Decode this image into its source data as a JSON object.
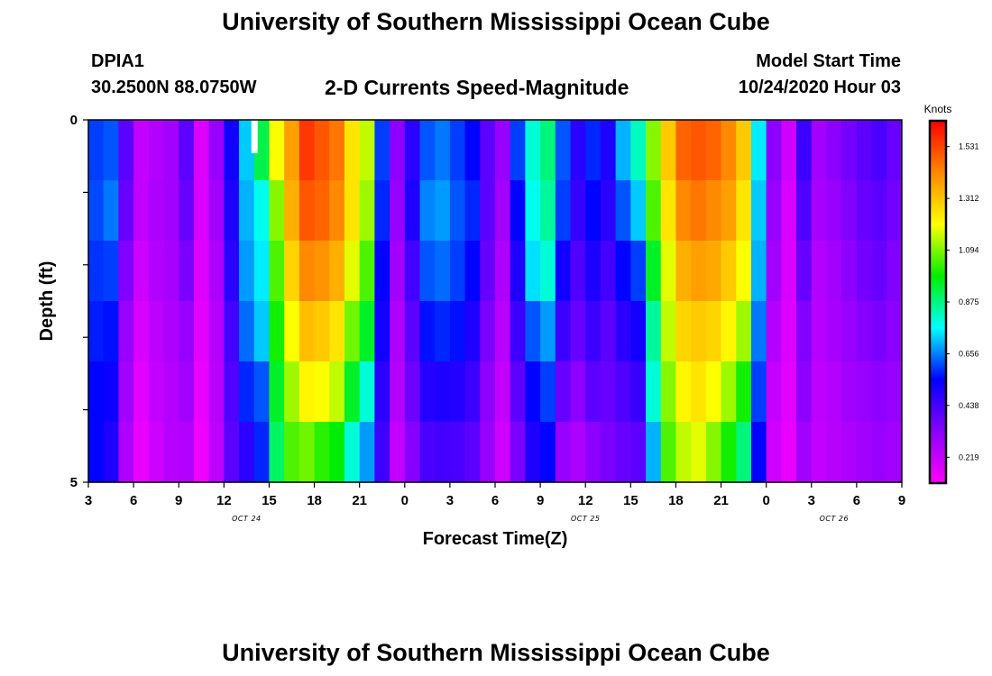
{
  "header": {
    "title": "University of Southern Mississippi Ocean Cube",
    "station_id": "DPIA1",
    "station_coords": "30.2500N 88.0750W",
    "plot_title": "2-D Currents Speed-Magnitude",
    "model_start_label": "Model Start Time",
    "model_start_value": "10/24/2020 Hour 03"
  },
  "footer": {
    "title": "University of Southern Mississippi Ocean Cube"
  },
  "chart_data": {
    "type": "heatmap",
    "xlabel": "Forecast Time(Z)",
    "ylabel": "Depth (ft)",
    "ylim": [
      0,
      5
    ],
    "y_ticks": [
      "0",
      "5"
    ],
    "x_tick_labels": [
      "3",
      "6",
      "9",
      "12",
      "15",
      "18",
      "21",
      "0",
      "3",
      "6",
      "9",
      "12",
      "15",
      "18",
      "21",
      "0",
      "3",
      "6",
      "9"
    ],
    "x_start_hour": 3,
    "x_step_hours": 3,
    "date_labels": [
      {
        "label": "OCT 24",
        "at_tick": 3.5
      },
      {
        "label": "OCT 25",
        "at_tick": 11
      },
      {
        "label": "OCT 26",
        "at_tick": 16.5
      }
    ],
    "colorbar": {
      "unit": "Knots",
      "ticks": [
        "1.531",
        "1.312",
        "1.094",
        "0.875",
        "0.656",
        "0.438",
        "0.219"
      ],
      "tick_values": [
        1.531,
        1.312,
        1.094,
        0.875,
        0.656,
        0.438,
        0.219
      ],
      "min": 0.11,
      "max": 1.64,
      "colors": [
        "#ff00ff",
        "#8800ff",
        "#0000ff",
        "#00ffff",
        "#00ee00",
        "#ffff00",
        "#ff8800",
        "#ff0000"
      ]
    },
    "hours_per_column": 1,
    "depth_layers": 5,
    "speed_knots": [
      [
        0.6,
        0.61,
        0.59,
        0.57,
        0.55,
        0.55
      ],
      [
        0.62,
        0.65,
        0.6,
        0.56,
        0.53,
        0.5
      ],
      [
        0.4,
        0.38,
        0.34,
        0.3,
        0.28,
        0.26
      ],
      [
        0.22,
        0.22,
        0.2,
        0.18,
        0.16,
        0.15
      ],
      [
        0.25,
        0.26,
        0.25,
        0.23,
        0.22,
        0.2
      ],
      [
        0.28,
        0.28,
        0.27,
        0.26,
        0.25,
        0.24
      ],
      [
        0.4,
        0.38,
        0.35,
        0.3,
        0.28,
        0.25
      ],
      [
        0.18,
        0.18,
        0.17,
        0.16,
        0.15,
        0.14
      ],
      [
        0.3,
        0.28,
        0.26,
        0.25,
        0.24,
        0.23
      ],
      [
        0.52,
        0.5,
        0.48,
        0.44,
        0.42,
        0.4
      ],
      [
        0.72,
        0.7,
        0.68,
        0.64,
        0.58,
        0.48
      ],
      [
        0.92,
        0.78,
        0.75,
        0.72,
        0.62,
        0.58
      ],
      [
        1.2,
        1.1,
        1.05,
        1.0,
        0.95,
        0.9
      ],
      [
        1.38,
        1.35,
        1.28,
        1.2,
        1.12,
        1.05
      ],
      [
        1.55,
        1.5,
        1.42,
        1.32,
        1.22,
        1.08
      ],
      [
        1.5,
        1.48,
        1.4,
        1.3,
        1.2,
        1.02
      ],
      [
        1.45,
        1.42,
        1.35,
        1.25,
        1.15,
        0.98
      ],
      [
        1.25,
        1.25,
        1.18,
        1.08,
        0.95,
        0.8
      ],
      [
        1.15,
        1.12,
        1.05,
        0.95,
        0.8,
        0.68
      ],
      [
        0.6,
        0.58,
        0.55,
        0.52,
        0.48,
        0.45
      ],
      [
        0.32,
        0.3,
        0.28,
        0.26,
        0.25,
        0.22
      ],
      [
        0.48,
        0.5,
        0.44,
        0.4,
        0.37,
        0.33
      ],
      [
        0.62,
        0.66,
        0.62,
        0.56,
        0.49,
        0.43
      ],
      [
        0.65,
        0.68,
        0.64,
        0.58,
        0.5,
        0.44
      ],
      [
        0.6,
        0.62,
        0.6,
        0.56,
        0.49,
        0.43
      ],
      [
        0.55,
        0.58,
        0.55,
        0.5,
        0.45,
        0.4
      ],
      [
        0.4,
        0.4,
        0.38,
        0.35,
        0.32,
        0.3
      ],
      [
        0.3,
        0.28,
        0.26,
        0.24,
        0.22,
        0.2
      ],
      [
        0.6,
        0.55,
        0.5,
        0.45,
        0.4,
        0.35
      ],
      [
        0.8,
        0.78,
        0.74,
        0.62,
        0.55,
        0.5
      ],
      [
        0.88,
        0.85,
        0.8,
        0.68,
        0.6,
        0.55
      ],
      [
        0.62,
        0.6,
        0.52,
        0.45,
        0.38,
        0.3
      ],
      [
        0.48,
        0.46,
        0.42,
        0.38,
        0.32,
        0.26
      ],
      [
        0.58,
        0.55,
        0.5,
        0.45,
        0.4,
        0.32
      ],
      [
        0.5,
        0.48,
        0.44,
        0.4,
        0.38,
        0.35
      ],
      [
        0.7,
        0.62,
        0.55,
        0.48,
        0.42,
        0.38
      ],
      [
        0.82,
        0.72,
        0.6,
        0.52,
        0.46,
        0.4
      ],
      [
        1.1,
        1.05,
        0.95,
        0.85,
        0.8,
        0.7
      ],
      [
        1.3,
        1.25,
        1.18,
        1.15,
        1.1,
        1.05
      ],
      [
        1.48,
        1.42,
        1.35,
        1.28,
        1.22,
        1.15
      ],
      [
        1.5,
        1.45,
        1.38,
        1.3,
        1.25,
        1.18
      ],
      [
        1.48,
        1.42,
        1.36,
        1.28,
        1.2,
        1.1
      ],
      [
        1.42,
        1.38,
        1.3,
        1.22,
        1.12,
        1.0
      ],
      [
        1.3,
        1.25,
        1.2,
        1.12,
        1.0,
        0.88
      ],
      [
        0.75,
        0.72,
        0.7,
        0.65,
        0.6,
        0.55
      ],
      [
        0.32,
        0.3,
        0.28,
        0.25,
        0.22,
        0.2
      ],
      [
        0.2,
        0.18,
        0.18,
        0.17,
        0.16,
        0.15
      ],
      [
        0.45,
        0.42,
        0.38,
        0.34,
        0.32,
        0.28
      ],
      [
        0.28,
        0.27,
        0.25,
        0.24,
        0.23,
        0.22
      ],
      [
        0.32,
        0.3,
        0.28,
        0.27,
        0.25,
        0.24
      ],
      [
        0.36,
        0.34,
        0.32,
        0.3,
        0.28,
        0.26
      ],
      [
        0.4,
        0.38,
        0.36,
        0.33,
        0.3,
        0.28
      ],
      [
        0.43,
        0.4,
        0.38,
        0.35,
        0.32,
        0.3
      ],
      [
        0.38,
        0.36,
        0.34,
        0.32,
        0.3,
        0.28
      ],
      [
        0.35,
        0.33,
        0.31,
        0.3,
        0.29,
        0.27
      ]
    ]
  }
}
